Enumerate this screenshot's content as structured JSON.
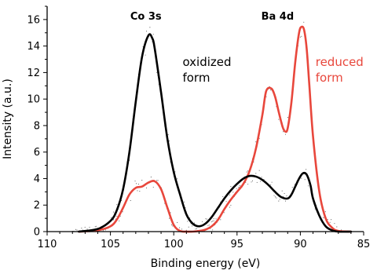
{
  "chart_data": {
    "type": "line",
    "xlabel": "Binding energy (eV)",
    "ylabel": "Intensity (a.u.)",
    "xlim": [
      110,
      85
    ],
    "ylim": [
      0,
      17
    ],
    "x_reversed": true,
    "xticks": [
      110,
      105,
      100,
      95,
      90,
      85
    ],
    "yticks": [
      0,
      2,
      4,
      6,
      8,
      10,
      12,
      14,
      16
    ],
    "grid": false,
    "annotations": [
      {
        "text": "Co 3s",
        "x": 102.2,
        "y": 16.0
      },
      {
        "text": "Ba 4d",
        "x": 91.8,
        "y": 16.0
      }
    ],
    "series": [
      {
        "name": "oxidized form",
        "label_lines": [
          "oxidized",
          "form"
        ],
        "label_pos": {
          "x": 99.3,
          "y": 12.5
        },
        "color": "#000000",
        "x": [
          107.5,
          106,
          105,
          104.5,
          104,
          103.5,
          103,
          102.5,
          102,
          101.7,
          101.5,
          101,
          100.5,
          100,
          99.5,
          99,
          98.5,
          98,
          97.5,
          97,
          96.5,
          96,
          95.5,
          95,
          94.5,
          94,
          93.5,
          93,
          92.5,
          92,
          91.5,
          91,
          90.7,
          90.4,
          90.1,
          89.8,
          89.5,
          89.2,
          89,
          88.5,
          88,
          87.5,
          87,
          86
        ],
        "y": [
          0.0,
          0.2,
          0.8,
          1.6,
          3.2,
          6.0,
          9.8,
          13.2,
          14.8,
          14.6,
          13.8,
          10.5,
          7.0,
          4.5,
          2.8,
          1.3,
          0.6,
          0.4,
          0.6,
          1.1,
          1.8,
          2.5,
          3.1,
          3.6,
          4.0,
          4.2,
          4.15,
          3.9,
          3.5,
          3.0,
          2.6,
          2.5,
          2.8,
          3.4,
          4.0,
          4.4,
          4.3,
          3.5,
          2.5,
          1.2,
          0.4,
          0.1,
          0.0,
          0.0
        ]
      },
      {
        "name": "reduced form",
        "label_lines": [
          "reduced",
          "form"
        ],
        "label_pos": {
          "x": 88.8,
          "y": 12.5
        },
        "color": "#e8473c",
        "x": [
          107.5,
          106,
          105,
          104.5,
          104,
          103.5,
          103,
          102.5,
          102,
          101.5,
          101,
          100.5,
          100,
          99.5,
          99,
          98.5,
          98,
          97.5,
          97,
          96.5,
          96,
          95.5,
          95,
          94.5,
          94,
          93.5,
          93,
          92.7,
          92.3,
          92,
          91.7,
          91.4,
          91.2,
          91,
          90.7,
          90.4,
          90.1,
          89.9,
          89.7,
          89.5,
          89.3,
          89,
          88.5,
          88,
          87.5,
          87,
          86
        ],
        "y": [
          0.0,
          0.1,
          0.4,
          0.9,
          1.8,
          2.8,
          3.3,
          3.4,
          3.7,
          3.8,
          3.2,
          1.8,
          0.5,
          0.05,
          0.0,
          0.0,
          0.05,
          0.15,
          0.4,
          0.9,
          1.7,
          2.4,
          3.0,
          3.6,
          4.6,
          6.3,
          8.8,
          10.6,
          10.8,
          10.2,
          9.0,
          7.9,
          7.55,
          7.8,
          9.8,
          12.8,
          15.0,
          15.45,
          15.2,
          13.8,
          11.2,
          7.2,
          3.0,
          1.0,
          0.3,
          0.05,
          0.0
        ]
      }
    ]
  }
}
